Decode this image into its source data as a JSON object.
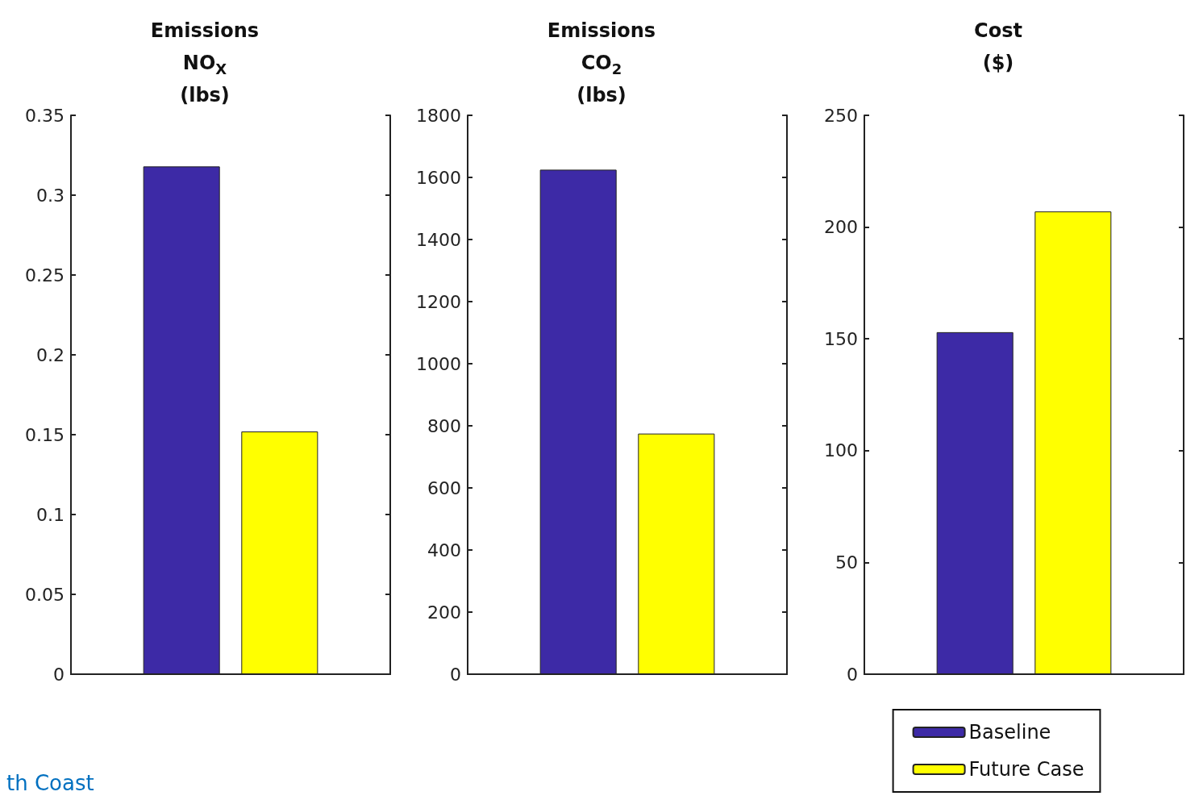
{
  "chart_data": [
    {
      "type": "bar",
      "title": "Emissions\nNO$_{X}$\n(lbs)",
      "categories": [
        null
      ],
      "legend": false,
      "ylim": [
        0,
        0.35
      ],
      "yticks": [
        0,
        0.05,
        0.1,
        0.15,
        0.2,
        0.25,
        0.3,
        0.35
      ],
      "annotations": [
        "th Coast"
      ],
      "series": [
        {
          "color": "#3d2aa6",
          "values": [
            0.318
          ]
        },
        {
          "color": "#ffff00",
          "values": [
            0.152
          ]
        }
      ]
    },
    {
      "type": "bar",
      "title": "Emissions\nCO$_{2}$\n(lbs)",
      "categories": [
        null
      ],
      "legend": false,
      "ylim": [
        0,
        1800
      ],
      "yticks": [
        0,
        200,
        400,
        600,
        800,
        1000,
        1200,
        1400,
        1600,
        1800
      ],
      "series": [
        {
          "color": "#3d2aa6",
          "values": [
            1625
          ]
        },
        {
          "color": "#ffff00",
          "values": [
            775
          ]
        }
      ]
    },
    {
      "type": "bar",
      "title": "Cost\n($)",
      "categories": [
        null
      ],
      "legend": "bottom",
      "ylim": [
        0,
        250
      ],
      "yticks": [
        0,
        50,
        100,
        150,
        200,
        250
      ],
      "series": [
        {
          "name": "Baseline",
          "color": "#3d2aa6",
          "values": [
            153
          ]
        },
        {
          "name": "Future Case",
          "color": "#ffff00",
          "values": [
            207
          ]
        }
      ]
    }
  ]
}
